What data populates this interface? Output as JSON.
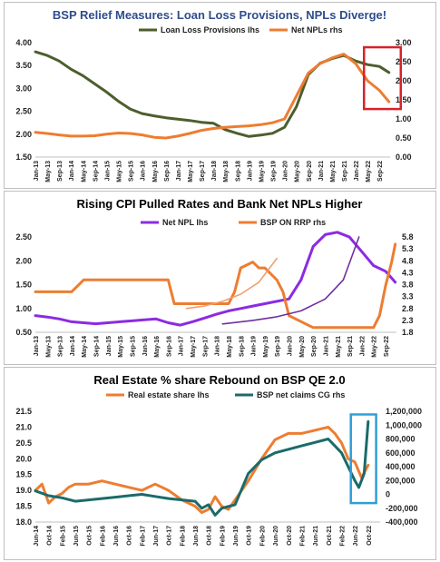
{
  "chart_data": [
    {
      "id": "p1",
      "type": "line",
      "title": "BSP Relief Measures: Loan Loss Provisions, NPLs Diverge!",
      "title_color": "#2e4c8c",
      "left_ticks": [
        "4.00",
        "3.50",
        "3.00",
        "2.50",
        "2.00",
        "1.50"
      ],
      "right_ticks": [
        "3.00",
        "2.50",
        "2.00",
        "1.50",
        "1.00",
        "0.50",
        "0.00"
      ],
      "ylim_left": [
        1.5,
        4.0
      ],
      "ylim_right": [
        0,
        3.0
      ],
      "x_labels": [
        "Jan-13",
        "May-13",
        "Sep-13",
        "Jan-14",
        "May-14",
        "Sep-14",
        "Jan-15",
        "May-15",
        "Sep-15",
        "Jan-16",
        "May-16",
        "Sep-16",
        "Jan-17",
        "May-17",
        "Sep-17",
        "Jan-18",
        "May-18",
        "Sep-18",
        "Jan-19",
        "May-19",
        "Sep-19",
        "Jan-20",
        "May-20",
        "Sep-20",
        "Jan-21",
        "May-21",
        "Sep-21",
        "Jan-22",
        "May-22",
        "Sep-22"
      ],
      "legend_position": "top",
      "highlight_box": {
        "color": "#d6232a",
        "x_range": [
          27.7,
          30.8
        ],
        "y_range_left": [
          2.55,
          3.9
        ]
      },
      "series": [
        {
          "name": "Loan Loss Provisions lhs",
          "axis": "left",
          "color": "#4d5e2c",
          "x": [
            0,
            1,
            2,
            3,
            4,
            5,
            6,
            7,
            8,
            9,
            10,
            11,
            12,
            13,
            14,
            15,
            16,
            17,
            18,
            19,
            20,
            21,
            22,
            23,
            24,
            25,
            26,
            27,
            28,
            29,
            29.8
          ],
          "values": [
            3.8,
            3.72,
            3.6,
            3.42,
            3.28,
            3.1,
            2.92,
            2.72,
            2.55,
            2.45,
            2.4,
            2.36,
            2.33,
            2.3,
            2.26,
            2.24,
            2.1,
            2.02,
            1.95,
            1.98,
            2.02,
            2.15,
            2.6,
            3.3,
            3.55,
            3.65,
            3.72,
            3.6,
            3.52,
            3.48,
            3.35
          ]
        },
        {
          "name": "Net NPLs rhs",
          "axis": "right",
          "color": "#ed7d31",
          "x": [
            0,
            1,
            2,
            3,
            4,
            5,
            6,
            7,
            8,
            9,
            10,
            11,
            12,
            13,
            14,
            15,
            16,
            17,
            18,
            19,
            20,
            21,
            22,
            23,
            24,
            25,
            26,
            27,
            28,
            29,
            29.8
          ],
          "values": [
            0.65,
            0.62,
            0.58,
            0.55,
            0.55,
            0.56,
            0.6,
            0.63,
            0.62,
            0.58,
            0.52,
            0.5,
            0.55,
            0.62,
            0.7,
            0.75,
            0.78,
            0.8,
            0.82,
            0.85,
            0.9,
            1.0,
            1.6,
            2.2,
            2.45,
            2.6,
            2.7,
            2.45,
            2.0,
            1.75,
            1.45
          ]
        }
      ]
    },
    {
      "id": "p2",
      "type": "line",
      "title": "Rising CPI Pulled Rates and Bank Net NPLs Higher",
      "title_color": "#000000",
      "left_ticks": [
        "2.50",
        "2.00",
        "1.50",
        "1.00",
        "0.50"
      ],
      "right_ticks": [
        "5.8",
        "5.3",
        "4.8",
        "4.3",
        "3.8",
        "3.3",
        "2.8",
        "2.3",
        "1.8"
      ],
      "ylim_left": [
        0.5,
        2.5
      ],
      "ylim_right": [
        1.8,
        5.8
      ],
      "x_labels": [
        "Jan-13",
        "May-13",
        "Sep-13",
        "Jan-14",
        "May-14",
        "Sep-14",
        "Jan-15",
        "May-15",
        "Sep-15",
        "Jan-16",
        "May-16",
        "Sep-16",
        "Jan-17",
        "May-17",
        "Sep-17",
        "Jan-18",
        "May-18",
        "Sep-18",
        "Jan-19",
        "May-19",
        "Sep-19",
        "Jan-20",
        "May-20",
        "Sep-20",
        "Jan-21",
        "May-21",
        "Sep-21",
        "Jan-22",
        "May-22",
        "Sep-22"
      ],
      "legend_position": "top",
      "series": [
        {
          "name": "Net NPL lhs",
          "axis": "left",
          "color": "#8b2be2",
          "x": [
            0,
            1,
            2,
            3,
            4,
            5,
            6,
            7,
            8,
            9,
            10,
            11,
            12,
            13,
            14,
            15,
            16,
            17,
            18,
            19,
            20,
            21,
            22,
            23,
            24,
            25,
            26,
            27,
            28,
            29,
            29.8
          ],
          "values": [
            0.85,
            0.82,
            0.78,
            0.72,
            0.7,
            0.68,
            0.7,
            0.72,
            0.74,
            0.76,
            0.78,
            0.7,
            0.65,
            0.72,
            0.8,
            0.88,
            0.95,
            1.0,
            1.05,
            1.1,
            1.15,
            1.2,
            1.6,
            2.3,
            2.55,
            2.6,
            2.5,
            2.2,
            1.9,
            1.78,
            1.55
          ]
        },
        {
          "name": "BSP ON RRP rhs",
          "axis": "right",
          "color": "#ed7d31",
          "x": [
            0,
            1,
            2,
            3,
            4,
            5,
            6,
            7,
            8,
            9,
            10,
            11,
            11.5,
            12,
            13,
            14,
            15,
            16,
            16.5,
            17,
            18,
            18.5,
            19,
            20,
            20.5,
            21,
            22,
            23,
            24,
            25,
            26,
            27,
            28,
            28.5,
            29,
            29.5,
            29.8
          ],
          "values": [
            3.5,
            3.5,
            3.5,
            3.5,
            4.0,
            4.0,
            4.0,
            4.0,
            4.0,
            4.0,
            4.0,
            4.0,
            3.0,
            3.0,
            3.0,
            3.0,
            3.0,
            3.0,
            3.5,
            4.5,
            4.75,
            4.5,
            4.5,
            4.0,
            3.5,
            2.5,
            2.25,
            2.0,
            2.0,
            2.0,
            2.0,
            2.0,
            2.0,
            2.5,
            3.75,
            4.75,
            5.5
          ]
        },
        {
          "name": "",
          "axis": "right",
          "color": "#f0a070",
          "style": "trend",
          "x": [
            12.5,
            14,
            15.5,
            17,
            18.5,
            20
          ],
          "values": [
            2.8,
            2.9,
            3.1,
            3.4,
            3.9,
            4.9
          ]
        },
        {
          "name": "",
          "axis": "right",
          "color": "#7030a0",
          "style": "trend",
          "x": [
            15.5,
            18,
            20,
            22,
            24,
            25.5,
            26.8
          ],
          "values": [
            2.15,
            2.3,
            2.45,
            2.7,
            3.2,
            4.0,
            5.8
          ]
        }
      ]
    },
    {
      "id": "p3",
      "type": "line",
      "title": "Real Estate % share Rebound on BSP QE 2.0",
      "title_color": "#000000",
      "left_ticks": [
        "21.5",
        "21.0",
        "20.5",
        "20.0",
        "19.5",
        "19.0",
        "18.5",
        "18.0"
      ],
      "right_ticks": [
        "1,200,000",
        "1,000,000",
        "800,000",
        "600,000",
        "400,000",
        "200,000",
        "0",
        "-200,000",
        "-400,000"
      ],
      "ylim_left": [
        18.0,
        21.5
      ],
      "ylim_right": [
        -400000,
        1200000
      ],
      "x_labels": [
        "Jun-14",
        "Oct-14",
        "Feb-15",
        "Jun-15",
        "Oct-15",
        "Feb-16",
        "Jun-16",
        "Oct-16",
        "Feb-17",
        "Jun-17",
        "Oct-17",
        "Feb-18",
        "Jun-18",
        "Oct-18",
        "Feb-19",
        "Jun-19",
        "Oct-19",
        "Feb-20",
        "Jun-20",
        "Oct-20",
        "Feb-21",
        "Jun-21",
        "Oct-21",
        "Feb-22",
        "Jun-22",
        "Oct-22"
      ],
      "legend_position": "top",
      "highlight_box": {
        "color": "#2f9fd6",
        "x_range": [
          23.7,
          25.6
        ],
        "y_range_left": [
          18.6,
          21.4
        ]
      },
      "series": [
        {
          "name": "Real estate share lhs",
          "axis": "left",
          "color": "#ed7d31",
          "x": [
            0,
            0.5,
            1,
            1.5,
            2,
            2.5,
            3,
            4,
            5,
            6,
            7,
            8,
            9,
            10,
            11,
            12,
            12.5,
            13,
            13.5,
            14,
            14.5,
            15,
            16,
            17,
            18,
            19,
            20,
            21,
            22,
            22.5,
            23,
            23.5,
            24,
            24.5,
            25
          ],
          "values": [
            19.0,
            19.2,
            18.6,
            18.8,
            18.9,
            19.1,
            19.2,
            19.2,
            19.3,
            19.2,
            19.1,
            19.0,
            19.2,
            19.0,
            18.7,
            18.5,
            18.3,
            18.4,
            18.8,
            18.5,
            18.4,
            18.7,
            19.3,
            20.0,
            20.6,
            20.8,
            20.8,
            20.9,
            21.0,
            20.8,
            20.5,
            20.0,
            19.9,
            19.4,
            19.8
          ]
        },
        {
          "name": "BSP net claims CG rhs",
          "axis": "right",
          "color": "#1a6b6b",
          "x": [
            0,
            1,
            2,
            3,
            4,
            5,
            6,
            7,
            8,
            9,
            10,
            11,
            12,
            12.5,
            13,
            13.5,
            14,
            15,
            16,
            17,
            18,
            19,
            20,
            21,
            22,
            22.5,
            23,
            23.5,
            24,
            24.3,
            24.7,
            25
          ],
          "values": [
            50000,
            -20000,
            -50000,
            -100000,
            -80000,
            -60000,
            -40000,
            -20000,
            0,
            -30000,
            -60000,
            -80000,
            -100000,
            -200000,
            -150000,
            -300000,
            -200000,
            -150000,
            300000,
            500000,
            600000,
            650000,
            700000,
            750000,
            800000,
            700000,
            600000,
            400000,
            200000,
            100000,
            300000,
            1050000
          ]
        }
      ]
    }
  ]
}
